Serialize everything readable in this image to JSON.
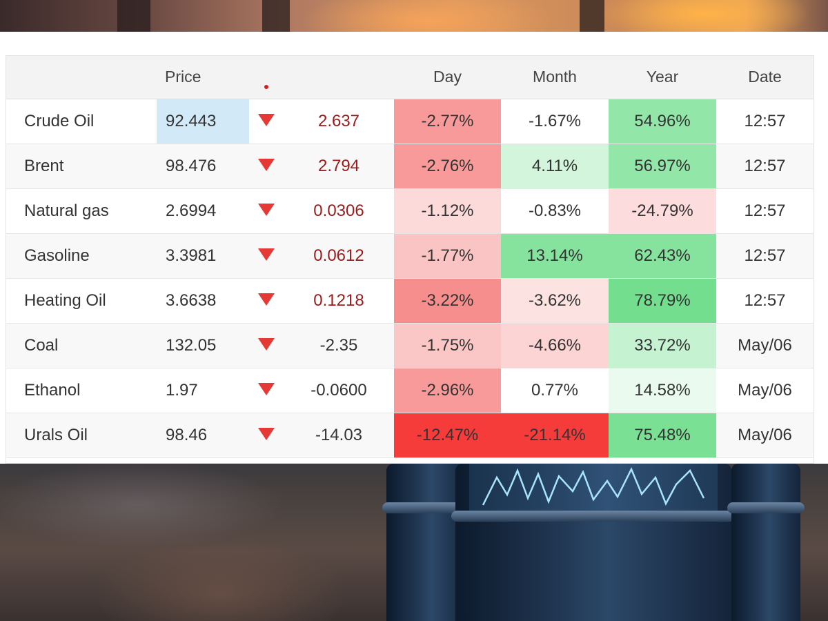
{
  "table": {
    "headers": {
      "name": "",
      "price": "Price",
      "arrow": "",
      "change": "",
      "day": "Day",
      "month": "Month",
      "year": "Year",
      "date": "Date"
    },
    "rows": [
      {
        "name": "Crude Oil",
        "price": "92.443",
        "change": "2.637",
        "change_color": "#9b1b1b",
        "day": "-2.77%",
        "month": "-1.67%",
        "year": "54.96%",
        "date": "12:57",
        "day_bg": "#f99a9a",
        "month_bg": "#ffffff",
        "year_bg": "#92e6a8",
        "price_highlight": true
      },
      {
        "name": "Brent",
        "price": "98.476",
        "change": "2.794",
        "change_color": "#9b1b1b",
        "day": "-2.76%",
        "month": "4.11%",
        "year": "56.97%",
        "date": "12:57",
        "day_bg": "#f99a9a",
        "month_bg": "#d3f5dc",
        "year_bg": "#92e6a8",
        "price_highlight": false
      },
      {
        "name": "Natural gas",
        "price": "2.6994",
        "change": "0.0306",
        "change_color": "#9b1b1b",
        "day": "-1.12%",
        "month": "-0.83%",
        "year": "-24.79%",
        "date": "12:57",
        "day_bg": "#fcdada",
        "month_bg": "#ffffff",
        "year_bg": "#fcdcdc",
        "price_highlight": false
      },
      {
        "name": "Gasoline",
        "price": "3.3981",
        "change": "0.0612",
        "change_color": "#9b1b1b",
        "day": "-1.77%",
        "month": "13.14%",
        "year": "62.43%",
        "date": "12:57",
        "day_bg": "#fbc4c4",
        "month_bg": "#86e39e",
        "year_bg": "#86e39e",
        "price_highlight": false
      },
      {
        "name": "Heating Oil",
        "price": "3.6638",
        "change": "0.1218",
        "change_color": "#9b1b1b",
        "day": "-3.22%",
        "month": "-3.62%",
        "year": "78.79%",
        "date": "12:57",
        "day_bg": "#f78e8e",
        "month_bg": "#fde2e2",
        "year_bg": "#74de8f",
        "price_highlight": false
      },
      {
        "name": "Coal",
        "price": "132.05",
        "change": "-2.35",
        "change_color": "#333333",
        "day": "-1.75%",
        "month": "-4.66%",
        "year": "33.72%",
        "date": "May/06",
        "day_bg": "#fbc6c6",
        "month_bg": "#fcd4d4",
        "year_bg": "#c5f2d1",
        "price_highlight": false
      },
      {
        "name": "Ethanol",
        "price": "1.97",
        "change": "-0.0600",
        "change_color": "#333333",
        "day": "-2.96%",
        "month": "0.77%",
        "year": "14.58%",
        "date": "May/06",
        "day_bg": "#f99a9a",
        "month_bg": "#ffffff",
        "year_bg": "#eafaee",
        "price_highlight": false
      },
      {
        "name": "Urals Oil",
        "price": "98.46",
        "change": "-14.03",
        "change_color": "#333333",
        "day": "-12.47%",
        "month": "-21.14%",
        "year": "75.48%",
        "date": "May/06",
        "day_bg": "#f63b3b",
        "month_bg": "#f63b3b",
        "year_bg": "#7ae093",
        "price_highlight": false
      }
    ]
  },
  "icons": {
    "direction": "down-triangle-icon",
    "header_marker": "red-dot-icon"
  },
  "colors": {
    "down_arrow": "#e53935",
    "price_highlight": "#d2e9f8"
  }
}
